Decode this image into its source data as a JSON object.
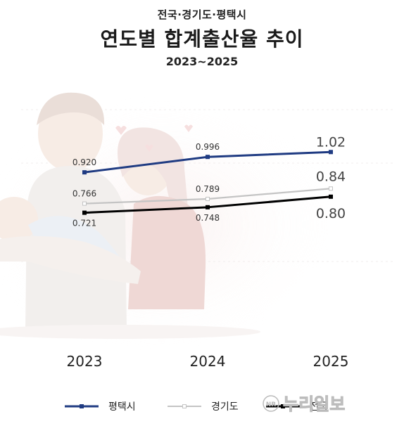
{
  "header": {
    "region_line": "전국·경기도·평택시",
    "title": "연도별 합계출산율 추이",
    "period": "2023~2025"
  },
  "watermark": {
    "badge": "NR",
    "text": "누리일보"
  },
  "chart_data": {
    "type": "line",
    "title": "연도별 합계출산율 추이",
    "subtitle": "2023~2025",
    "categories": [
      "2023",
      "2024",
      "2025"
    ],
    "series": [
      {
        "name": "평택시",
        "color": "#1f3b82",
        "values": [
          0.92,
          0.996,
          1.02
        ],
        "labels": [
          "0.920",
          "0.996",
          "1.02"
        ]
      },
      {
        "name": "경기도",
        "color": "#c4c4c4",
        "values": [
          0.766,
          0.789,
          0.84
        ],
        "labels": [
          "0.766",
          "0.789",
          "0.84"
        ]
      },
      {
        "name": "전국",
        "color": "#000000",
        "values": [
          0.721,
          0.748,
          0.8
        ],
        "labels": [
          "0.721",
          "0.748",
          "0.80"
        ]
      }
    ],
    "grid": false,
    "legend": "bottom"
  }
}
